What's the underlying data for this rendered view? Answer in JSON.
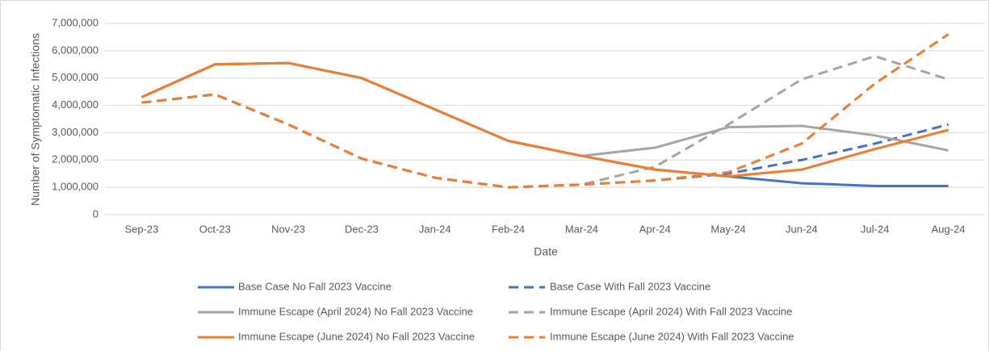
{
  "chart_data": {
    "type": "line",
    "x_label": "Date",
    "y_label": "Number of Symptomatic Infections",
    "categories": [
      "Sep-23",
      "Oct-23",
      "Nov-23",
      "Dec-23",
      "Jan-24",
      "Feb-24",
      "Mar-24",
      "Apr-24",
      "May-24",
      "Jun-24",
      "Jul-24",
      "Aug-24"
    ],
    "ylim": [
      0,
      7000000
    ],
    "yticks": [
      0,
      {
        "value": 1000000,
        "label": "1,000,000"
      },
      {
        "value": 2000000,
        "label": "2,000,000"
      },
      {
        "value": 3000000,
        "label": "3,000,000"
      },
      {
        "value": 4000000,
        "label": "4,000,000"
      },
      {
        "value": 5000000,
        "label": "5,000,000"
      },
      {
        "value": 6000000,
        "label": "6,000,000"
      },
      {
        "value": 7000000,
        "label": "7,000,000"
      }
    ],
    "grid": true,
    "legend": "bottom",
    "series": [
      {
        "name": "Base Case No Fall 2023 Vaccine",
        "color": "#4472c4",
        "dashed": false,
        "values": [
          4300000,
          5500000,
          5550000,
          5000000,
          3850000,
          2700000,
          2150000,
          1650000,
          1400000,
          1150000,
          1050000,
          1050000
        ]
      },
      {
        "name": "Base Case With Fall 2023 Vaccine",
        "color": "#4472c4",
        "dashed": true,
        "values": [
          4100000,
          4400000,
          3300000,
          2050000,
          1350000,
          1000000,
          1100000,
          1250000,
          1500000,
          2000000,
          2600000,
          3300000
        ]
      },
      {
        "name": "Immune Escape (April 2024) No Fall 2023 Vaccine",
        "color": "#a5a5a5",
        "dashed": false,
        "values": [
          4300000,
          5500000,
          5550000,
          5000000,
          3850000,
          2700000,
          2150000,
          2450000,
          3200000,
          3250000,
          2900000,
          2350000
        ]
      },
      {
        "name": "Immune Escape (April 2024) With Fall 2023 Vaccine",
        "color": "#a5a5a5",
        "dashed": true,
        "values": [
          4100000,
          4400000,
          3300000,
          2050000,
          1350000,
          1000000,
          1100000,
          1750000,
          3300000,
          4950000,
          5800000,
          4950000
        ]
      },
      {
        "name": "Immune Escape (June 2024) No Fall 2023 Vaccine",
        "color": "#ed7d31",
        "dashed": false,
        "values": [
          4300000,
          5500000,
          5550000,
          5000000,
          3850000,
          2700000,
          2150000,
          1650000,
          1400000,
          1650000,
          2400000,
          3100000
        ]
      },
      {
        "name": "Immune Escape (June 2024) With Fall 2023 Vaccine",
        "color": "#ed7d31",
        "dashed": true,
        "values": [
          4100000,
          4400000,
          3300000,
          2050000,
          1350000,
          1000000,
          1100000,
          1250000,
          1550000,
          2600000,
          4800000,
          6600000
        ]
      }
    ]
  }
}
